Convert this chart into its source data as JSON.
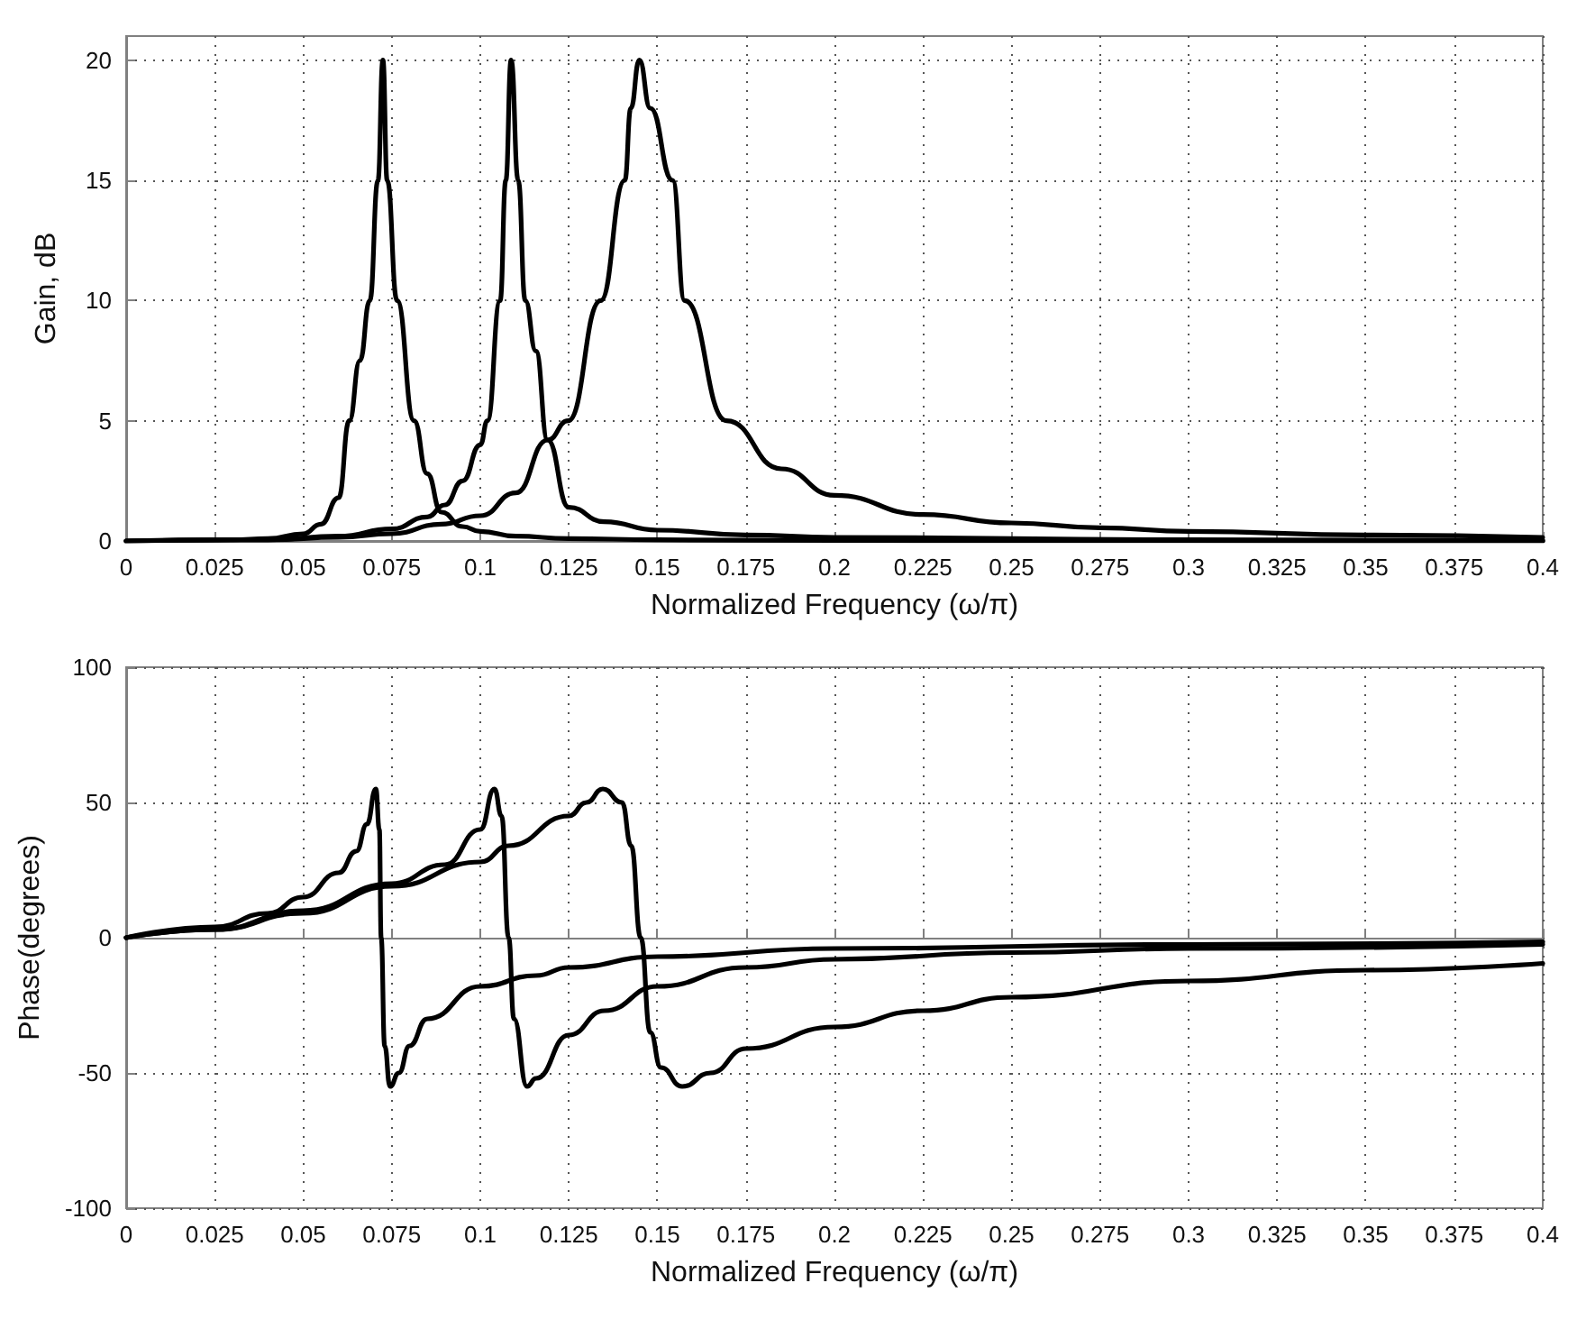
{
  "chart_data": [
    {
      "type": "line",
      "xlabel": "Normalized Frequency (ω/π)",
      "ylabel": "Gain, dB",
      "xlim": [
        0,
        0.4
      ],
      "xticks": [
        0,
        0.025,
        0.05,
        0.075,
        0.1,
        0.125,
        0.15,
        0.175,
        0.2,
        0.225,
        0.25,
        0.275,
        0.3,
        0.325,
        0.35,
        0.375,
        0.4
      ],
      "ylim": [
        0,
        21
      ],
      "yticks": [
        0,
        5,
        10,
        15,
        20
      ],
      "grid": true,
      "series": [
        {
          "color": "#000000",
          "x": [
            0,
            0.03,
            0.04,
            0.05,
            0.055,
            0.06,
            0.063,
            0.066,
            0.0688,
            0.0711,
            0.0725,
            0.0737,
            0.0765,
            0.0813,
            0.085,
            0.089,
            0.095,
            0.1,
            0.11,
            0.125,
            0.15,
            0.2,
            0.3,
            0.4
          ],
          "values": [
            0,
            0.05,
            0.1,
            0.3,
            0.7,
            1.8,
            5,
            7.5,
            10,
            15,
            20,
            15,
            10,
            5,
            2.8,
            1.2,
            0.6,
            0.4,
            0.2,
            0.1,
            0.05,
            0.02,
            0.01,
            0
          ]
        },
        {
          "color": "#000000",
          "x": [
            0,
            0.04,
            0.06,
            0.075,
            0.085,
            0.09,
            0.095,
            0.1,
            0.102,
            0.1056,
            0.1072,
            0.1087,
            0.1107,
            0.1127,
            0.1157,
            0.119,
            0.125,
            0.135,
            0.15,
            0.175,
            0.2,
            0.3,
            0.4
          ],
          "values": [
            0,
            0.05,
            0.2,
            0.5,
            1,
            1.5,
            2.5,
            4,
            5,
            10,
            15,
            20,
            15,
            10,
            7.9,
            4.2,
            1.4,
            0.8,
            0.45,
            0.25,
            0.15,
            0.05,
            0.02
          ]
        },
        {
          "color": "#000000",
          "x": [
            0,
            0.04,
            0.06,
            0.075,
            0.089,
            0.1,
            0.11,
            0.119,
            0.1248,
            0.134,
            0.1408,
            0.1425,
            0.1449,
            0.148,
            0.1543,
            0.1577,
            0.1695,
            0.185,
            0.2,
            0.225,
            0.25,
            0.275,
            0.3,
            0.35,
            0.4
          ],
          "values": [
            0,
            0.05,
            0.15,
            0.3,
            0.7,
            1.05,
            2,
            4.2,
            5,
            10,
            15,
            18,
            20,
            18,
            15,
            10,
            5,
            3,
            1.9,
            1.1,
            0.75,
            0.55,
            0.4,
            0.25,
            0.15
          ]
        }
      ]
    },
    {
      "type": "line",
      "xlabel": "Normalized Frequency (ω/π)",
      "ylabel": "Phase(degrees)",
      "xlim": [
        0,
        0.4
      ],
      "xticks": [
        0,
        0.025,
        0.05,
        0.075,
        0.1,
        0.125,
        0.15,
        0.175,
        0.2,
        0.225,
        0.25,
        0.275,
        0.3,
        0.325,
        0.35,
        0.375,
        0.4
      ],
      "ylim": [
        -100,
        100
      ],
      "yticks": [
        -100,
        -50,
        0,
        50,
        100
      ],
      "grid": true,
      "series": [
        {
          "color": "#000000",
          "x": [
            0,
            0.025,
            0.04,
            0.05,
            0.06,
            0.065,
            0.068,
            0.0705,
            0.0715,
            0.072,
            0.073,
            0.0745,
            0.077,
            0.08,
            0.085,
            0.1,
            0.1157,
            0.125,
            0.15,
            0.2,
            0.3,
            0.4
          ],
          "values": [
            0,
            4,
            9,
            15,
            24,
            32,
            42,
            55,
            40,
            0,
            -40,
            -55,
            -50,
            -40,
            -30,
            -18,
            -14,
            -11,
            -7,
            -4,
            -2.5,
            -1.5
          ]
        },
        {
          "color": "#000000",
          "x": [
            0,
            0.025,
            0.05,
            0.075,
            0.09,
            0.1,
            0.104,
            0.106,
            0.108,
            0.1095,
            0.1132,
            0.1157,
            0.125,
            0.135,
            0.15,
            0.175,
            0.2,
            0.25,
            0.3,
            0.4
          ],
          "values": [
            0,
            3,
            10,
            20,
            27,
            40,
            55,
            45,
            0,
            -30,
            -55,
            -52,
            -36,
            -27,
            -18,
            -11,
            -8,
            -5.5,
            -4,
            -2.5
          ]
        },
        {
          "color": "#000000",
          "x": [
            0,
            0.025,
            0.05,
            0.075,
            0.1,
            0.108,
            0.125,
            0.13,
            0.1346,
            0.14,
            0.1426,
            0.1453,
            0.148,
            0.151,
            0.157,
            0.165,
            0.175,
            0.2,
            0.225,
            0.25,
            0.3,
            0.35,
            0.4
          ],
          "values": [
            0,
            3,
            9,
            19,
            28,
            34,
            45,
            50,
            55,
            50,
            34,
            0,
            -35,
            -48,
            -55,
            -50,
            -41,
            -33,
            -27,
            -22,
            -16,
            -12,
            -9.5
          ]
        }
      ]
    }
  ]
}
